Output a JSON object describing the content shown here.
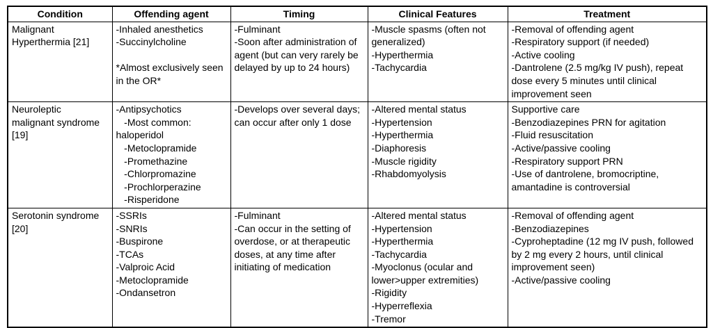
{
  "page": {
    "background_color": "#ffffff",
    "border_color": "#000000",
    "text_color": "#000000"
  },
  "table": {
    "headers": [
      "Condition",
      "Offending agent",
      "Timing",
      "Clinical Features",
      "Treatment"
    ],
    "rows": [
      {
        "condition": "Malignant Hyperthermia [21]",
        "offending_agent": [
          "-Inhaled anesthetics",
          "-Succinylcholine",
          "",
          "*Almost exclusively seen in the OR*"
        ],
        "timing": [
          "-Fulminant",
          "-Soon after administration of agent (but can very rarely be delayed by up to 24 hours)"
        ],
        "clinical_features": [
          "-Muscle spasms (often not generalized)",
          "-Hyperthermia",
          "-Tachycardia"
        ],
        "treatment": [
          "-Removal of offending agent",
          "-Respiratory support (if needed)",
          "-Active cooling",
          "-Dantrolene (2.5 mg/kg IV push), repeat dose every 5 minutes until clinical improvement seen"
        ]
      },
      {
        "condition": "Neuroleptic malignant syndrome [19]",
        "offending_agent": [
          "-Antipsychotics",
          "   -Most common: haloperidol",
          "   -Metoclopramide",
          "   -Promethazine",
          "   -Chlorpromazine",
          "   -Prochlorperazine",
          "   -Risperidone"
        ],
        "timing": [
          "-Develops over several days; can occur after only 1 dose"
        ],
        "clinical_features": [
          "-Altered mental status",
          "-Hypertension",
          "-Hyperthermia",
          "-Diaphoresis",
          "-Muscle rigidity",
          "-Rhabdomyolysis"
        ],
        "treatment": [
          "Supportive care",
          "-Benzodiazepines PRN for agitation",
          "-Fluid resuscitation",
          "-Active/passive cooling",
          "-Respiratory support PRN",
          "-Use of dantrolene, bromocriptine, amantadine is controversial"
        ]
      },
      {
        "condition": "Serotonin syndrome [20]",
        "offending_agent": [
          "-SSRIs",
          "-SNRIs",
          "-Buspirone",
          "-TCAs",
          "-Valproic Acid",
          "-Metoclopramide",
          "-Ondansetron"
        ],
        "timing": [
          "-Fulminant",
          "-Can occur in the setting of overdose, or at therapeutic doses, at any time after initiating of medication"
        ],
        "clinical_features": [
          "-Altered mental status",
          "-Hypertension",
          "-Hyperthermia",
          "-Tachycardia",
          "-Myoclonus (ocular and lower>upper extremities)",
          "-Rigidity",
          "-Hyperreflexia",
          "-Tremor"
        ],
        "treatment": [
          "-Removal of offending agent",
          "-Benzodiazepines",
          "-Cyproheptadine (12 mg IV push, followed by 2 mg every 2 hours, until clinical improvement seen)",
          "-Active/passive cooling"
        ]
      }
    ]
  }
}
